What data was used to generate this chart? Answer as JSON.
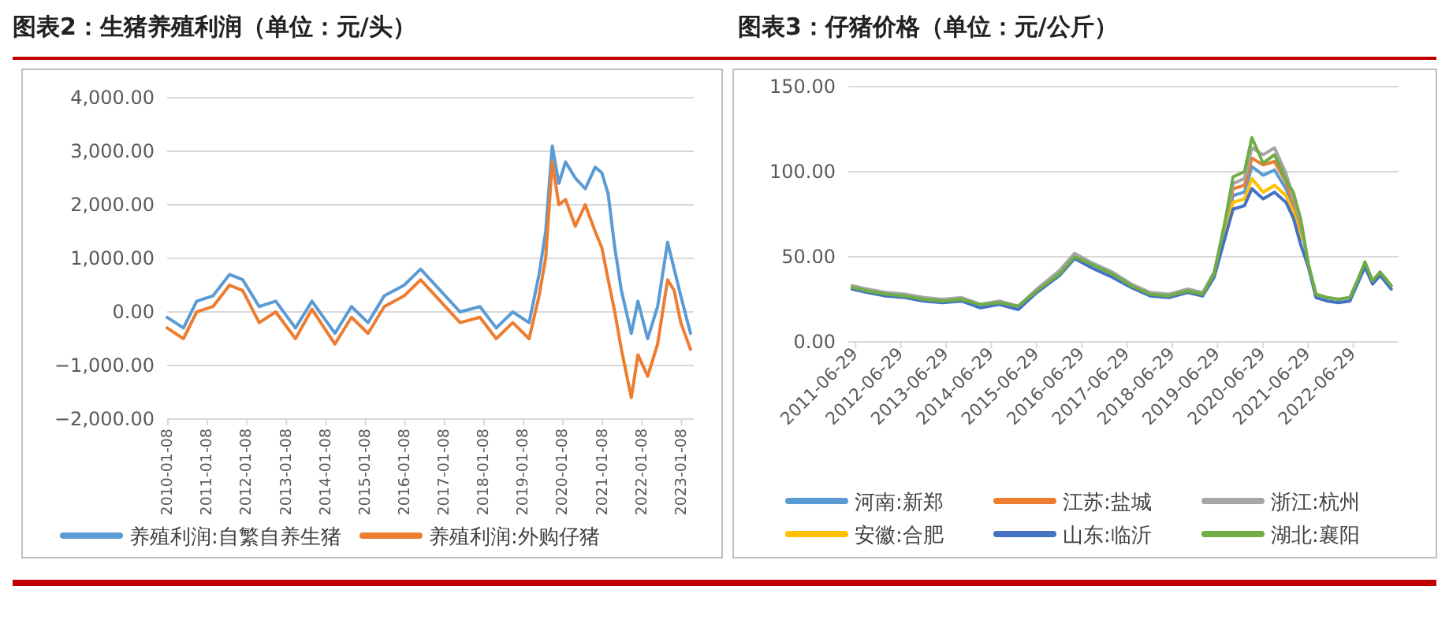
{
  "chart_data": [
    {
      "type": "line",
      "title": "图表2：生猪养殖利润（单位：元/头）",
      "x": [
        "2010-01",
        "2010-06",
        "2010-10",
        "2011-03",
        "2011-08",
        "2011-12",
        "2012-05",
        "2012-10",
        "2013-04",
        "2013-09",
        "2014-04",
        "2014-09",
        "2015-02",
        "2015-07",
        "2016-01",
        "2016-06",
        "2016-12",
        "2017-06",
        "2017-12",
        "2018-05",
        "2018-10",
        "2019-03",
        "2019-06",
        "2019-08",
        "2019-10",
        "2019-12",
        "2020-02",
        "2020-05",
        "2020-08",
        "2020-11",
        "2021-01",
        "2021-03",
        "2021-05",
        "2021-07",
        "2021-10",
        "2021-12",
        "2022-03",
        "2022-06",
        "2022-09",
        "2022-11",
        "2023-01",
        "2023-04"
      ],
      "series": [
        {
          "name": "养殖利润:自繁自养生猪",
          "color": "#5b9bd5",
          "values": [
            -100,
            -300,
            200,
            300,
            700,
            600,
            100,
            200,
            -300,
            200,
            -400,
            100,
            -200,
            300,
            500,
            800,
            400,
            0,
            100,
            -300,
            0,
            -200,
            700,
            1500,
            3100,
            2400,
            2800,
            2500,
            2300,
            2700,
            2600,
            2200,
            1200,
            400,
            -400,
            200,
            -500,
            100,
            1300,
            800,
            300,
            -400
          ]
        },
        {
          "name": "养殖利润:外购仔猪",
          "color": "#ed7d31",
          "values": [
            -300,
            -500,
            0,
            100,
            500,
            400,
            -200,
            0,
            -500,
            50,
            -600,
            -100,
            -400,
            100,
            300,
            600,
            200,
            -200,
            -100,
            -500,
            -200,
            -500,
            300,
            1000,
            2800,
            2000,
            2100,
            1600,
            2000,
            1500,
            1200,
            600,
            0,
            -700,
            -1600,
            -800,
            -1200,
            -600,
            600,
            400,
            -200,
            -700
          ]
        }
      ],
      "xlim": [
        "2010-01-01",
        "2023-05-01"
      ],
      "xticks": [
        "2010-01-08",
        "2011-01-08",
        "2012-01-08",
        "2013-01-08",
        "2014-01-08",
        "2015-01-08",
        "2016-01-08",
        "2017-01-08",
        "2018-01-08",
        "2019-01-08",
        "2020-01-08",
        "2021-01-08",
        "2022-01-08",
        "2023-01-08"
      ],
      "ylim": [
        -2000,
        4000
      ],
      "yticks": [
        {
          "value": -2000,
          "label": "−2,000.00"
        },
        {
          "value": -1000,
          "label": "−1,000.00"
        },
        {
          "value": 0,
          "label": "0.00"
        },
        {
          "value": 1000,
          "label": "1,000.00"
        },
        {
          "value": 2000,
          "label": "2,000.00"
        },
        {
          "value": 3000,
          "label": "3,000.00"
        },
        {
          "value": 4000,
          "label": "4,000.00"
        }
      ],
      "grid": "y",
      "legend": "bottom"
    },
    {
      "type": "line",
      "title": "图表3：仔猪价格（单位：元/公斤）",
      "x": [
        "2011-06",
        "2011-10",
        "2012-03",
        "2012-08",
        "2013-01",
        "2013-06",
        "2013-11",
        "2014-04",
        "2014-09",
        "2015-02",
        "2015-07",
        "2016-01",
        "2016-05",
        "2016-10",
        "2017-03",
        "2017-08",
        "2018-01",
        "2018-06",
        "2018-11",
        "2019-03",
        "2019-06",
        "2019-09",
        "2019-11",
        "2020-02",
        "2020-04",
        "2020-07",
        "2020-10",
        "2021-01",
        "2021-03",
        "2021-05",
        "2021-07",
        "2021-09",
        "2021-12",
        "2022-03",
        "2022-06",
        "2022-08",
        "2022-10",
        "2022-12",
        "2023-02",
        "2023-05"
      ],
      "series": [
        {
          "name": "河南:新郑",
          "color": "#5b9bd5",
          "values": [
            null,
            null,
            null,
            null,
            null,
            null,
            null,
            null,
            null,
            null,
            null,
            null,
            null,
            null,
            null,
            null,
            null,
            null,
            null,
            null,
            null,
            66,
            86,
            88,
            103,
            98,
            101,
            90,
            79,
            63,
            null,
            null,
            null,
            null,
            null,
            null,
            null,
            null,
            null,
            null
          ]
        },
        {
          "name": "江苏:盐城",
          "color": "#ed7d31",
          "values": [
            null,
            null,
            null,
            null,
            null,
            null,
            null,
            null,
            null,
            null,
            null,
            null,
            null,
            null,
            null,
            null,
            null,
            null,
            null,
            null,
            null,
            68,
            90,
            92,
            108,
            104,
            106,
            94,
            82,
            66,
            null,
            null,
            null,
            null,
            null,
            null,
            null,
            null,
            null,
            null
          ]
        },
        {
          "name": "浙江:杭州",
          "color": "#a5a5a5",
          "values": [
            33,
            31,
            29,
            28,
            26,
            25,
            26,
            22,
            24,
            21,
            31,
            42,
            52,
            46,
            41,
            34,
            29,
            28,
            31,
            29,
            41,
            70,
            93,
            96,
            114,
            110,
            114,
            99,
            85,
            69,
            45,
            28,
            26,
            25,
            26,
            36,
            46,
            36,
            41,
            33
          ]
        },
        {
          "name": "安徽:合肥",
          "color": "#ffc000",
          "values": [
            null,
            null,
            null,
            null,
            null,
            null,
            null,
            null,
            null,
            null,
            null,
            null,
            null,
            null,
            null,
            null,
            null,
            null,
            null,
            null,
            null,
            64,
            82,
            84,
            96,
            88,
            92,
            86,
            76,
            60,
            null,
            null,
            null,
            null,
            null,
            null,
            null,
            null,
            null,
            null
          ]
        },
        {
          "name": "山东:临沂",
          "color": "#4472c4",
          "values": [
            31,
            29,
            27,
            26,
            24,
            23,
            24,
            20,
            22,
            19,
            29,
            39,
            49,
            43,
            38,
            32,
            27,
            26,
            29,
            27,
            38,
            62,
            78,
            80,
            90,
            84,
            88,
            82,
            73,
            57,
            44,
            26,
            24,
            23,
            24,
            34,
            44,
            34,
            39,
            31
          ]
        },
        {
          "name": "湖北:襄阳",
          "color": "#70ad47",
          "values": [
            32,
            30,
            28,
            27,
            25,
            24,
            25,
            22,
            23,
            21,
            30,
            40,
            50,
            45,
            40,
            33,
            28,
            27,
            30,
            28,
            40,
            72,
            97,
            100,
            120,
            105,
            110,
            95,
            88,
            72,
            46,
            28,
            26,
            25,
            26,
            36,
            47,
            36,
            41,
            33
          ]
        }
      ],
      "xlim": [
        "2011-05-01",
        "2023-06-29"
      ],
      "xticks": [
        "2011-06-29",
        "2012-06-29",
        "2013-06-29",
        "2014-06-29",
        "2015-06-29",
        "2016-06-29",
        "2017-06-29",
        "2018-06-29",
        "2019-06-29",
        "2020-06-29",
        "2021-06-29",
        "2022-06-29"
      ],
      "ylim": [
        0,
        150
      ],
      "yticks": [
        {
          "value": 0,
          "label": "0.00"
        },
        {
          "value": 50,
          "label": "50.00"
        },
        {
          "value": 100,
          "label": "100.00"
        },
        {
          "value": 150,
          "label": "150.00"
        }
      ],
      "grid": "y",
      "legend": "bottom"
    }
  ]
}
